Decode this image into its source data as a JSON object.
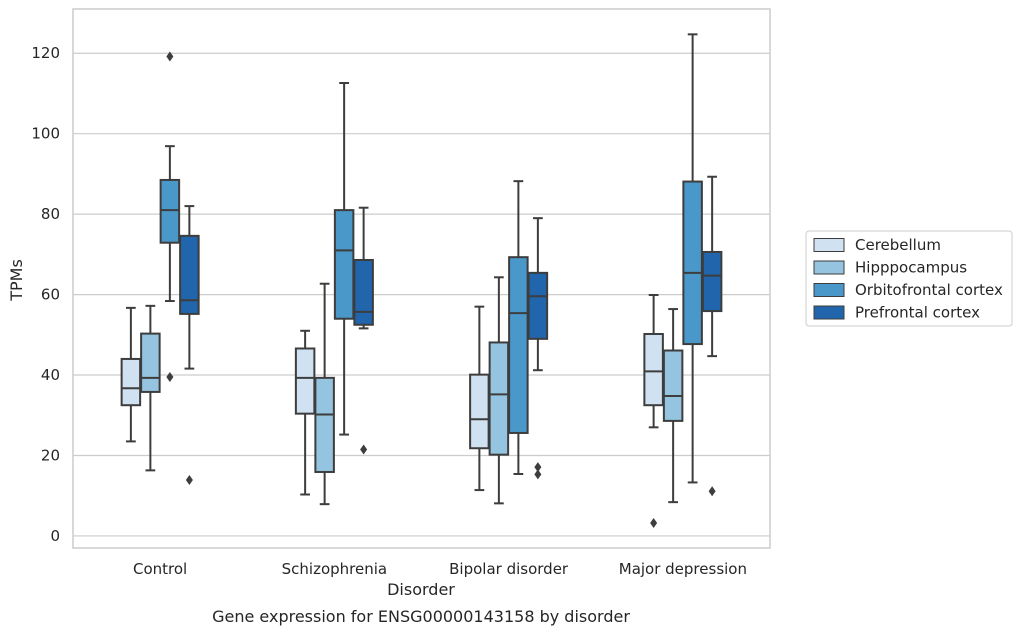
{
  "chart_data": {
    "type": "boxplot",
    "caption": "Gene expression for ENSG00000143158 by disorder",
    "xlabel": "Disorder",
    "ylabel": "TPMs",
    "ylim": [
      -3,
      131
    ],
    "yticks": [
      0,
      20,
      40,
      60,
      80,
      100,
      120
    ],
    "grid": "horizontal",
    "legend_position": "right",
    "categories": [
      "Control",
      "Schizophrenia",
      "Bipolar disorder",
      "Major depression"
    ],
    "series": [
      {
        "name": "Cerebellum",
        "color": "#d0e1f2",
        "boxes": [
          {
            "whislo": 23.5,
            "q1": 32.5,
            "med": 36.7,
            "q3": 44.0,
            "whishi": 56.7,
            "fliers": []
          },
          {
            "whislo": 10.3,
            "q1": 30.4,
            "med": 39.3,
            "q3": 46.6,
            "whishi": 51.0,
            "fliers": []
          },
          {
            "whislo": 11.4,
            "q1": 21.8,
            "med": 29.0,
            "q3": 40.1,
            "whishi": 57.0,
            "fliers": []
          },
          {
            "whislo": 27.0,
            "q1": 32.5,
            "med": 40.9,
            "q3": 50.2,
            "whishi": 59.9,
            "fliers": [
              3.2
            ]
          }
        ]
      },
      {
        "name": "Hipppocampus",
        "color": "#94c4df",
        "boxes": [
          {
            "whislo": 16.3,
            "q1": 35.8,
            "med": 39.3,
            "q3": 50.3,
            "whishi": 57.2,
            "fliers": []
          },
          {
            "whislo": 7.9,
            "q1": 15.9,
            "med": 30.2,
            "q3": 39.3,
            "whishi": 62.7,
            "fliers": []
          },
          {
            "whislo": 8.1,
            "q1": 20.2,
            "med": 35.2,
            "q3": 48.1,
            "whishi": 64.3,
            "fliers": []
          },
          {
            "whislo": 8.4,
            "q1": 28.6,
            "med": 34.8,
            "q3": 46.1,
            "whishi": 56.4,
            "fliers": []
          }
        ]
      },
      {
        "name": "Orbitofrontal cortex",
        "color": "#4a98c9",
        "boxes": [
          {
            "whislo": 58.4,
            "q1": 72.9,
            "med": 81.0,
            "q3": 88.5,
            "whishi": 96.9,
            "fliers": [
              119.2,
              39.5
            ]
          },
          {
            "whislo": 25.2,
            "q1": 54.0,
            "med": 71.0,
            "q3": 81.0,
            "whishi": 112.6,
            "fliers": []
          },
          {
            "whislo": 15.4,
            "q1": 25.6,
            "med": 55.4,
            "q3": 69.3,
            "whishi": 88.2,
            "fliers": []
          },
          {
            "whislo": 13.3,
            "q1": 47.7,
            "med": 65.4,
            "q3": 88.1,
            "whishi": 124.7,
            "fliers": []
          }
        ]
      },
      {
        "name": "Prefrontal cortex",
        "color": "#2166ac",
        "boxes": [
          {
            "whislo": 41.6,
            "q1": 55.2,
            "med": 58.6,
            "q3": 74.6,
            "whishi": 82.0,
            "fliers": [
              13.9
            ]
          },
          {
            "whislo": 51.6,
            "q1": 52.5,
            "med": 55.7,
            "q3": 68.6,
            "whishi": 81.6,
            "fliers": [
              21.5
            ]
          },
          {
            "whislo": 41.2,
            "q1": 49.0,
            "med": 59.6,
            "q3": 65.4,
            "whishi": 79.0,
            "fliers": [
              15.3,
              17.1
            ]
          },
          {
            "whislo": 44.7,
            "q1": 55.9,
            "med": 64.7,
            "q3": 70.6,
            "whishi": 89.3,
            "fliers": [
              11.1
            ]
          }
        ]
      }
    ]
  }
}
